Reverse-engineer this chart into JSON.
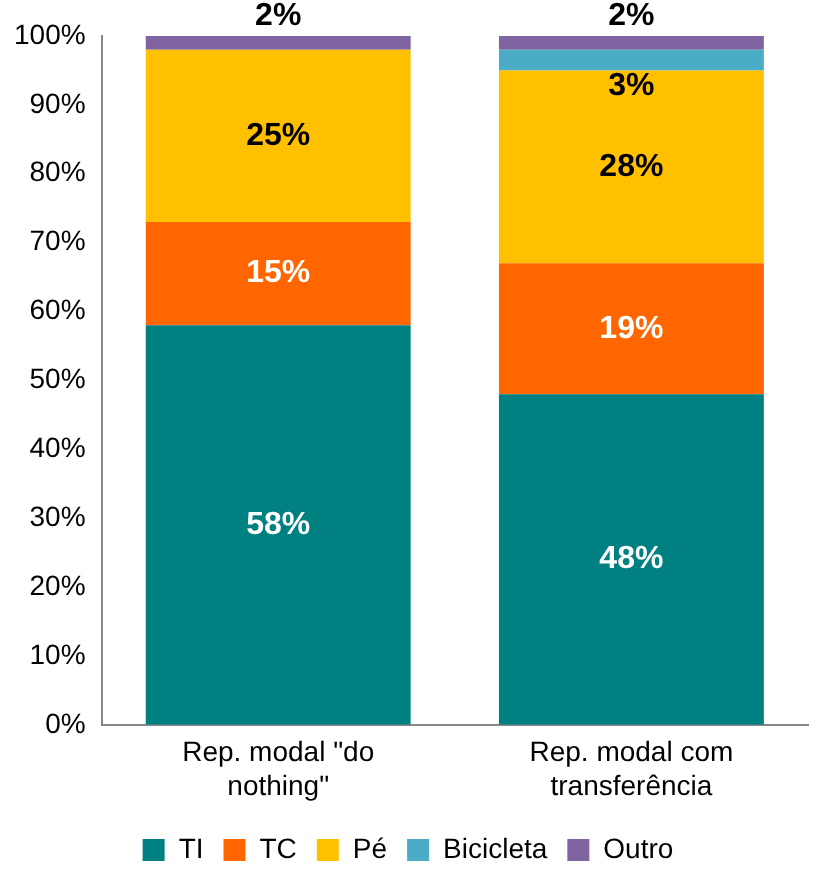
{
  "chart_data": {
    "type": "bar",
    "stacked": true,
    "categories": [
      "Rep. modal \"do nothing\"",
      "Rep. modal com transferência"
    ],
    "series": [
      {
        "name": "TI",
        "color": "#008080",
        "values": [
          58,
          48
        ],
        "value_labels": [
          "58%",
          "48%"
        ]
      },
      {
        "name": "TC",
        "color": "#ff6600",
        "values": [
          15,
          19
        ],
        "value_labels": [
          "15%",
          "19%"
        ]
      },
      {
        "name": "Pé",
        "color": "#ffc000",
        "values": [
          25,
          28
        ],
        "value_labels": [
          "25%",
          "28%"
        ]
      },
      {
        "name": "Bicicleta",
        "color": "#4bacc6",
        "values": [
          0,
          3
        ],
        "value_labels": [
          null,
          "3%"
        ]
      },
      {
        "name": "Outro",
        "color": "#8064a2",
        "values": [
          2,
          2
        ],
        "value_labels": [
          "2%",
          "2%"
        ]
      }
    ],
    "ylim": [
      0,
      100
    ],
    "yticks": [
      {
        "value": 0,
        "label": "0%"
      },
      {
        "value": 10,
        "label": "10%"
      },
      {
        "value": 20,
        "label": "20%"
      },
      {
        "value": 30,
        "label": "30%"
      },
      {
        "value": 40,
        "label": "40%"
      },
      {
        "value": 50,
        "label": "50%"
      },
      {
        "value": 60,
        "label": "60%"
      },
      {
        "value": 70,
        "label": "70%"
      },
      {
        "value": 80,
        "label": "80%"
      },
      {
        "value": 90,
        "label": "90%"
      },
      {
        "value": 100,
        "label": "100%"
      }
    ],
    "grid": false,
    "legend": "bottom"
  }
}
